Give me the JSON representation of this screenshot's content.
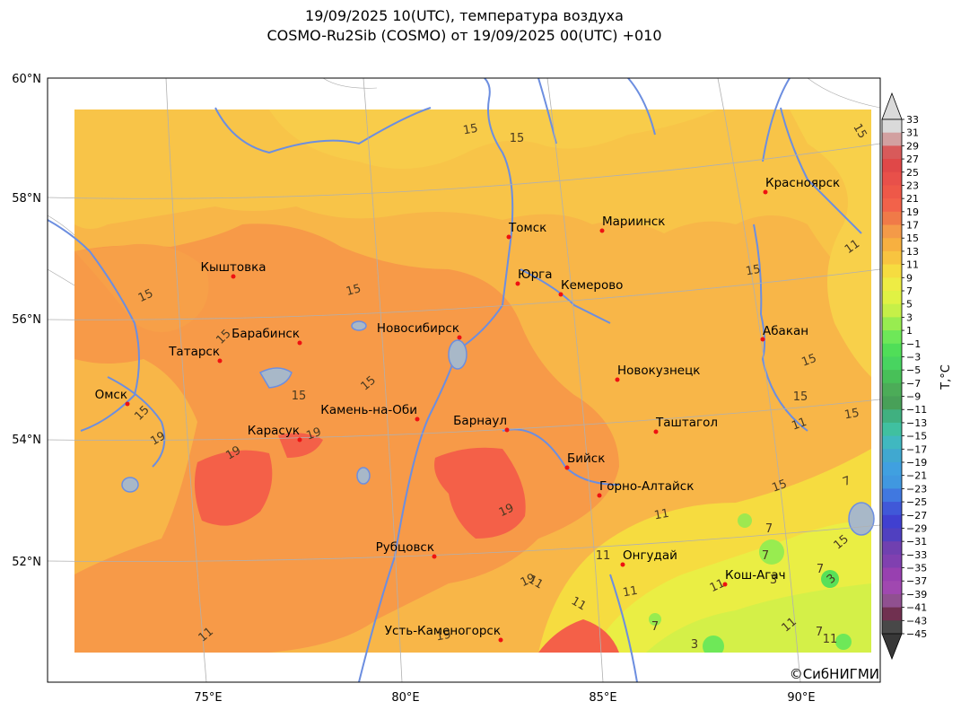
{
  "title": {
    "line1": "19/09/2025 10(UTC), температура воздуха",
    "line2": "COSMO-Ru2Sib (COSMO) от 19/09/2025 00(UTC) +010"
  },
  "axes": {
    "lat_labels": [
      "60°N",
      "58°N",
      "56°N",
      "54°N",
      "52°N"
    ],
    "lon_labels": [
      "75°E",
      "80°E",
      "85°E",
      "90°E"
    ]
  },
  "cities": [
    {
      "name": "Красноярск"
    },
    {
      "name": "Томск"
    },
    {
      "name": "Мариинск"
    },
    {
      "name": "Кыштовка"
    },
    {
      "name": "Юрга"
    },
    {
      "name": "Кемерово"
    },
    {
      "name": "Барабинск"
    },
    {
      "name": "Новосибирск"
    },
    {
      "name": "Абакан"
    },
    {
      "name": "Татарск"
    },
    {
      "name": "Новокузнецк"
    },
    {
      "name": "Омск"
    },
    {
      "name": "Камень-на-Оби"
    },
    {
      "name": "Барнаул"
    },
    {
      "name": "Таштагол"
    },
    {
      "name": "Карасук"
    },
    {
      "name": "Бийск"
    },
    {
      "name": "Горно-Алтайск"
    },
    {
      "name": "Рубцовск"
    },
    {
      "name": "Онгудай"
    },
    {
      "name": "Кош-Агач"
    },
    {
      "name": "Усть-Каменогорск"
    }
  ],
  "isolines": [
    "15",
    "15",
    "15",
    "15",
    "15",
    "15",
    "15",
    "15",
    "15",
    "15",
    "15",
    "15",
    "15",
    "15",
    "15",
    "19",
    "19",
    "19",
    "19",
    "19",
    "19",
    "11",
    "11",
    "11",
    "11",
    "11",
    "11",
    "11",
    "11",
    "11",
    "11",
    "7",
    "7",
    "7",
    "7",
    "7",
    "7",
    "3",
    "3",
    "3",
    "11"
  ],
  "colorbar": {
    "label": "T,°C",
    "ticks": [
      "33",
      "31",
      "29",
      "27",
      "25",
      "23",
      "21",
      "19",
      "17",
      "15",
      "13",
      "11",
      "9",
      "7",
      "5",
      "3",
      "1",
      "−1",
      "−3",
      "−5",
      "−7",
      "−9",
      "−11",
      "−13",
      "−15",
      "−17",
      "−19",
      "−21",
      "−23",
      "−25",
      "−27",
      "−29",
      "−31",
      "−33",
      "−35",
      "−37",
      "−39",
      "−41",
      "−43",
      "−45"
    ],
    "colors": [
      "#dadada",
      "#d2a0a0",
      "#d85a5a",
      "#e04848",
      "#e8504a",
      "#ee5848",
      "#f2624a",
      "#f07a48",
      "#f49a48",
      "#f7b040",
      "#f8c440",
      "#f6dc40",
      "#eeec44",
      "#e0f244",
      "#c6f048",
      "#98ec50",
      "#6ee858",
      "#50de58",
      "#48d460",
      "#48c058",
      "#4cac58",
      "#48a058",
      "#40b080",
      "#40c0a0",
      "#40b8c0",
      "#40a8d0",
      "#40a0e0",
      "#4098e0",
      "#4078e0",
      "#4058d8",
      "#4040d0",
      "#5040c0",
      "#7040b0",
      "#8040b0",
      "#9840b0",
      "#a048b0",
      "#905090",
      "#703050",
      "#484848"
    ]
  },
  "copyright": "©СибНИГМИ"
}
